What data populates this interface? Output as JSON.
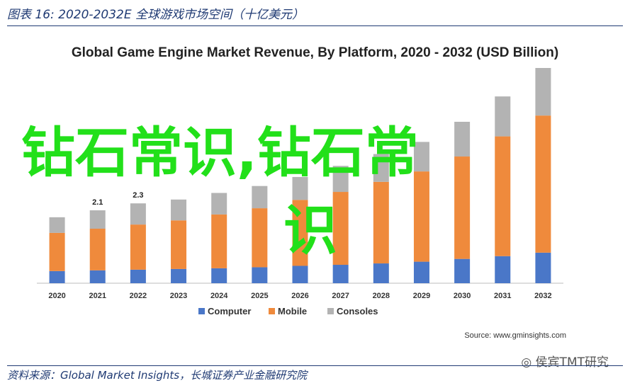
{
  "caption": "图表 16:  2020-2032E 全球游戏市场空间（十亿美元）",
  "source_line": "资料来源：Global Market Insights，长城证券产业金融研究院",
  "watermark": "侯宾TMT研究",
  "overlay_text": [
    "钻石常识,钻石常",
    "识"
  ],
  "colors": {
    "computer": "#4a77c8",
    "mobile": "#ef8a3c",
    "consoles": "#b3b3b3",
    "caption": "#1f3a73",
    "overlay": "#22e01a"
  },
  "chart_data": {
    "type": "bar",
    "stacked": true,
    "title": "Global Game Engine Market Revenue, By Platform, 2020 - 2032 (USD Billion)",
    "categories": [
      "2020",
      "2021",
      "2022",
      "2023",
      "2024",
      "2025",
      "2026",
      "2027",
      "2028",
      "2029",
      "2030",
      "2031",
      "2032"
    ],
    "series": [
      {
        "name": "Computer",
        "color": "#4a77c8",
        "values": [
          0.35,
          0.37,
          0.39,
          0.41,
          0.43,
          0.46,
          0.5,
          0.53,
          0.57,
          0.62,
          0.7,
          0.78,
          0.88
        ]
      },
      {
        "name": "Mobile",
        "color": "#ef8a3c",
        "values": [
          1.1,
          1.2,
          1.3,
          1.4,
          1.55,
          1.7,
          1.9,
          2.1,
          2.35,
          2.6,
          2.95,
          3.45,
          3.95
        ]
      },
      {
        "name": "Consoles",
        "color": "#b3b3b3",
        "values": [
          0.45,
          0.53,
          0.61,
          0.6,
          0.62,
          0.64,
          0.66,
          0.75,
          0.8,
          0.85,
          1.0,
          1.15,
          1.37
        ]
      }
    ],
    "data_labels": [
      {
        "category": "2021",
        "text": "2.1"
      },
      {
        "category": "2022",
        "text": "2.3"
      }
    ],
    "ylim": [
      0,
      6.2
    ],
    "grid": false,
    "legend_position": "bottom",
    "source": "Source: www.gminsights.com"
  }
}
